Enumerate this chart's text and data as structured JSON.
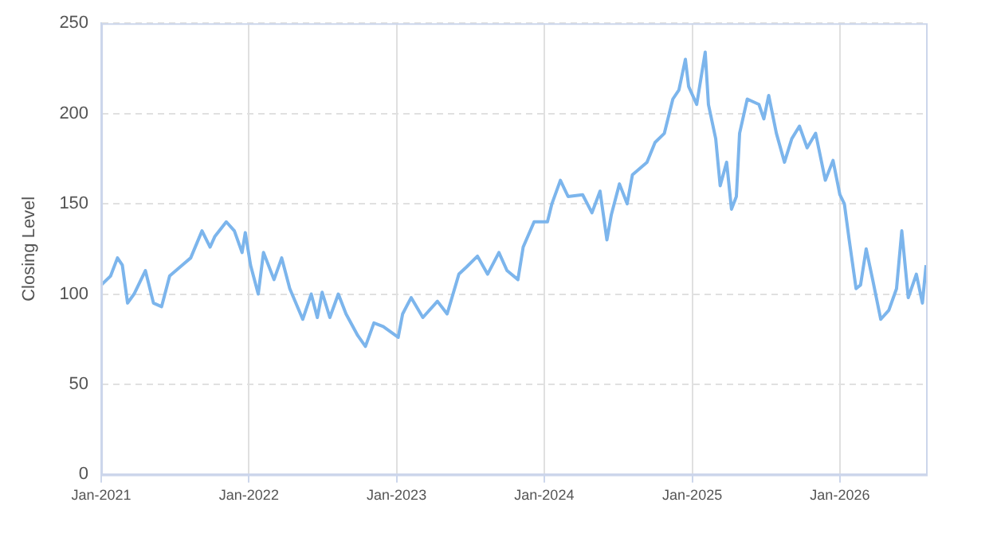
{
  "chart_data": {
    "type": "line",
    "ylabel": "Closing Level",
    "x": [
      "2021-01-01",
      "2021-01-24",
      "2021-02-10",
      "2021-02-22",
      "2021-03-07",
      "2021-03-23",
      "2021-04-20",
      "2021-05-10",
      "2021-05-30",
      "2021-06-19",
      "2021-07-20",
      "2021-08-10",
      "2021-09-07",
      "2021-09-27",
      "2021-10-09",
      "2021-11-06",
      "2021-11-26",
      "2021-12-15",
      "2021-12-23",
      "2022-01-05",
      "2022-01-24",
      "2022-02-06",
      "2022-03-04",
      "2022-03-23",
      "2022-04-12",
      "2022-05-14",
      "2022-06-04",
      "2022-06-19",
      "2022-07-01",
      "2022-07-20",
      "2022-08-10",
      "2022-08-29",
      "2022-09-27",
      "2022-10-16",
      "2022-11-06",
      "2022-11-29",
      "2023-01-05",
      "2023-01-16",
      "2023-02-06",
      "2023-03-07",
      "2023-04-12",
      "2023-05-06",
      "2023-06-04",
      "2023-06-23",
      "2023-07-20",
      "2023-08-14",
      "2023-09-11",
      "2023-10-01",
      "2023-10-28",
      "2023-11-10",
      "2023-12-07",
      "2024-01-09",
      "2024-01-20",
      "2024-02-10",
      "2024-02-29",
      "2024-04-05",
      "2024-04-28",
      "2024-05-18",
      "2024-06-04",
      "2024-06-15",
      "2024-07-05",
      "2024-07-24",
      "2024-08-06",
      "2024-09-11",
      "2024-10-01",
      "2024-10-24",
      "2024-11-14",
      "2024-11-29",
      "2024-12-15",
      "2024-12-23",
      "2025-01-12",
      "2025-02-02",
      "2025-02-10",
      "2025-02-28",
      "2025-03-11",
      "2025-03-27",
      "2025-04-08",
      "2025-04-20",
      "2025-04-28",
      "2025-05-17",
      "2025-06-15",
      "2025-06-27",
      "2025-07-09",
      "2025-07-28",
      "2025-08-17",
      "2025-09-04",
      "2025-09-23",
      "2025-10-12",
      "2025-11-02",
      "2025-11-14",
      "2025-11-26",
      "2025-12-15",
      "2026-01-01",
      "2026-01-12",
      "2026-01-24",
      "2026-02-10",
      "2026-02-21",
      "2026-03-07",
      "2026-03-23",
      "2026-04-12",
      "2026-05-02",
      "2026-05-21",
      "2026-06-03",
      "2026-06-19",
      "2026-07-09",
      "2026-07-24",
      "2026-08-02"
    ],
    "series": [
      {
        "color": "#7cb5ec",
        "values": [
          105,
          110,
          120,
          116,
          95,
          100,
          113,
          95,
          93,
          110,
          116,
          120,
          135,
          126,
          132,
          140,
          135,
          123,
          134,
          116,
          100,
          123,
          108,
          120,
          103,
          86,
          100,
          87,
          101,
          87,
          100,
          89,
          77,
          71,
          84,
          82,
          76,
          89,
          98,
          87,
          96,
          89,
          111,
          115,
          121,
          111,
          123,
          113,
          108,
          126,
          140,
          140,
          150,
          163,
          154,
          155,
          145,
          157,
          130,
          144,
          161,
          150,
          166,
          173,
          184,
          189,
          208,
          213,
          230,
          215,
          205,
          234,
          205,
          186,
          160,
          173,
          147,
          154,
          189,
          208,
          205,
          197,
          210,
          189,
          173,
          186,
          193,
          181,
          189,
          176,
          163,
          174,
          155,
          150,
          130,
          103,
          105,
          125,
          108,
          86,
          91,
          103,
          135,
          98,
          111,
          95,
          116
        ]
      }
    ],
    "xlim": [
      "2021-01-01",
      "2026-08-02"
    ],
    "xticks": [
      {
        "value": "2021-01-01",
        "label": "Jan-2021"
      },
      {
        "value": "2022-01-01",
        "label": "Jan-2022"
      },
      {
        "value": "2023-01-01",
        "label": "Jan-2023"
      },
      {
        "value": "2024-01-01",
        "label": "Jan-2024"
      },
      {
        "value": "2025-01-01",
        "label": "Jan-2025"
      },
      {
        "value": "2026-01-01",
        "label": "Jan-2026"
      }
    ],
    "ylim": [
      0,
      250
    ],
    "yticks": [
      0,
      50,
      100,
      150,
      200,
      250
    ],
    "grid": true,
    "legend": false,
    "marker": "none",
    "line_style": "solid"
  }
}
